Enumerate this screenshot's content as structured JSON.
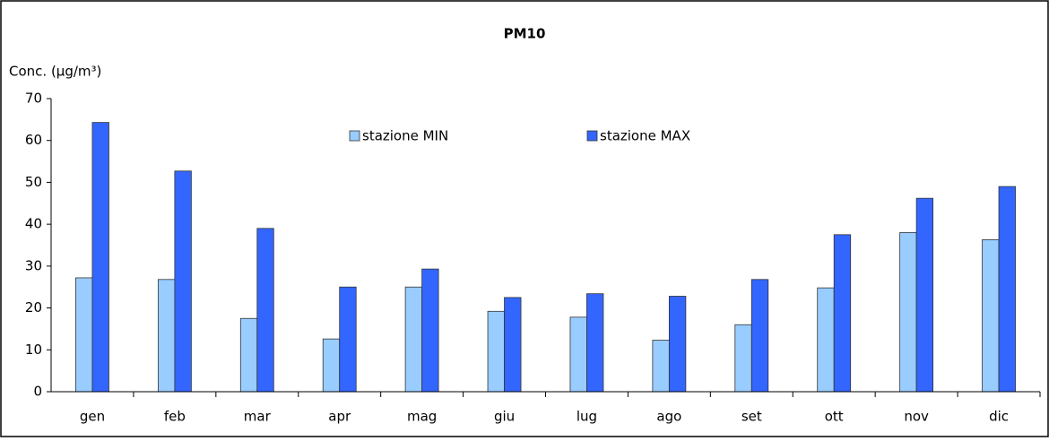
{
  "chart_data": {
    "type": "bar",
    "title": "PM10",
    "y_label": "Conc. (µg/m³)",
    "categories": [
      "gen",
      "feb",
      "mar",
      "apr",
      "mag",
      "giu",
      "lug",
      "ago",
      "set",
      "ott",
      "nov",
      "dic"
    ],
    "series": [
      {
        "name": "stazione MIN",
        "color": "#99ccff",
        "values": [
          27.2,
          26.8,
          17.5,
          12.6,
          25,
          19.2,
          17.8,
          12.3,
          16,
          24.8,
          38,
          36.3
        ]
      },
      {
        "name": "stazione MAX",
        "color": "#3366ff",
        "values": [
          64.3,
          52.7,
          39,
          25,
          29.3,
          22.5,
          23.4,
          22.8,
          26.8,
          37.5,
          46.2,
          49
        ]
      }
    ],
    "ylim": [
      0,
      70
    ],
    "yticks": [
      0,
      10,
      20,
      30,
      40,
      50,
      60,
      70
    ],
    "grid": false,
    "legend": "top"
  }
}
